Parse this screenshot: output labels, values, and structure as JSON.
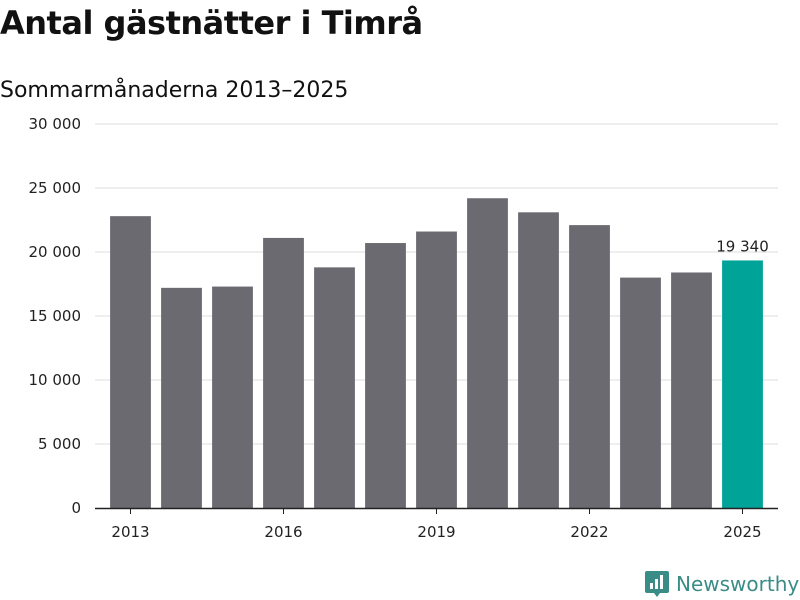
{
  "title": "Antal gästnätter i Timrå",
  "subtitle": "Sommarmånaderna 2013–2025",
  "brand": "Newsworthy",
  "colors": {
    "bar": "#6b6a70",
    "highlight": "#00a398",
    "grid": "#dddddd",
    "axis": "#222222",
    "brand": "#3a8c86"
  },
  "chart_data": {
    "type": "bar",
    "categories": [
      "2013",
      "2014",
      "2015",
      "2016",
      "2017",
      "2018",
      "2019",
      "2020",
      "2021",
      "2022",
      "2023",
      "2024",
      "2025"
    ],
    "values": [
      22800,
      17200,
      17300,
      21100,
      18800,
      20700,
      21600,
      24200,
      23100,
      22100,
      18000,
      18400,
      19340
    ],
    "highlight_index": 12,
    "data_labels": [
      {
        "index": 12,
        "text": "19 340"
      }
    ],
    "x_tick_labels": [
      "2013",
      "2016",
      "2019",
      "2022",
      "2025"
    ],
    "y_ticks": [
      0,
      5000,
      10000,
      15000,
      20000,
      25000,
      30000
    ],
    "y_tick_labels": [
      "0",
      "5 000",
      "10 000",
      "15 000",
      "20 000",
      "25 000",
      "30 000"
    ],
    "ylim": [
      0,
      30000
    ],
    "grid": true,
    "xlabel": "",
    "ylabel": ""
  }
}
